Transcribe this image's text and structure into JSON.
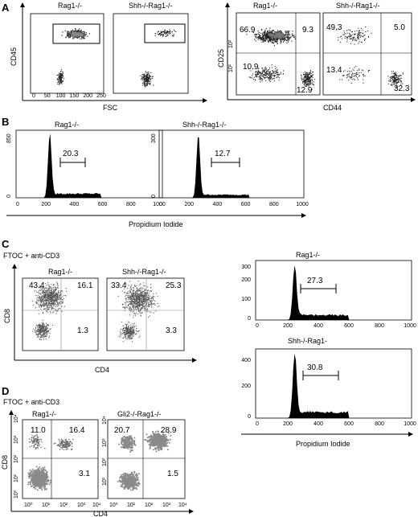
{
  "panels": {
    "A": {
      "label": "A",
      "left": {
        "plots": [
          {
            "title": "Rag1-/-"
          },
          {
            "title": "Shh-/-Rag1-/-"
          }
        ],
        "ylabel": "CD45",
        "xlabel": "FSC",
        "xticks": [
          "0",
          "50",
          "100",
          "150",
          "200",
          "250"
        ]
      },
      "right": {
        "plots": [
          {
            "title": "Rag1-/-",
            "q": {
              "ul": "66.9",
              "ur": "9.3",
              "ll": "10.9",
              "lr": "12.9"
            }
          },
          {
            "title": "Shh-/-Rag1-/-",
            "q": {
              "ul": "49.3",
              "ur": "5.0",
              "ll": "13.4",
              "lr": "32.3"
            }
          }
        ],
        "ylabel": "CD25",
        "xlabel": "CD44"
      }
    },
    "B": {
      "label": "B",
      "plots": [
        {
          "title": "Rag1-/-",
          "ymax": "850",
          "ymin": "0",
          "gate": "20.3"
        },
        {
          "title": "Shh-/-Rag1-/-",
          "ymax": "300",
          "ymin": "0",
          "gate": "12.7"
        }
      ],
      "xticks": [
        "0",
        "200",
        "400",
        "600",
        "800",
        "1000"
      ],
      "xlabel": "Propidium Iodide"
    },
    "C": {
      "label": "C",
      "subtitle": "FTOC + anti-CD3",
      "scatter": [
        {
          "title": "Rag1-/-",
          "q": {
            "ul": "43.4",
            "ur": "16.1",
            "lr": "1.3"
          }
        },
        {
          "title": "Shh-/-Rag1-/-",
          "q": {
            "ul": "33.4",
            "ur": "25.3",
            "lr": "3.3"
          }
        }
      ],
      "ylabel": "CD8",
      "xlabel": "CD4",
      "hist": [
        {
          "title": "Rag1-/-",
          "ymax": "300",
          "ymid": "200",
          "ylow": "100",
          "ymin": "0",
          "gate": "27.3"
        },
        {
          "title": "Shh-/-Rag1-",
          "ymax": "400",
          "ymid": "200",
          "ymin": "0",
          "gate": "30.8"
        }
      ],
      "hist_xticks": [
        "0",
        "200",
        "400",
        "600",
        "800",
        "1000"
      ],
      "hist_xlabel": "Propidium Iodide"
    },
    "D": {
      "label": "D",
      "subtitle": "FTOC + anti-CD3",
      "plots": [
        {
          "title": "Rag1-/-",
          "q": {
            "ul": "11.0",
            "ur": "16.4",
            "lr": "3.1"
          }
        },
        {
          "title": "Gli2-/-Rag1-/-",
          "q": {
            "ul": "20.7",
            "ur": "28.9",
            "lr": "1.5"
          }
        }
      ],
      "ylabel": "CD8",
      "xlabel": "CD4"
    }
  }
}
